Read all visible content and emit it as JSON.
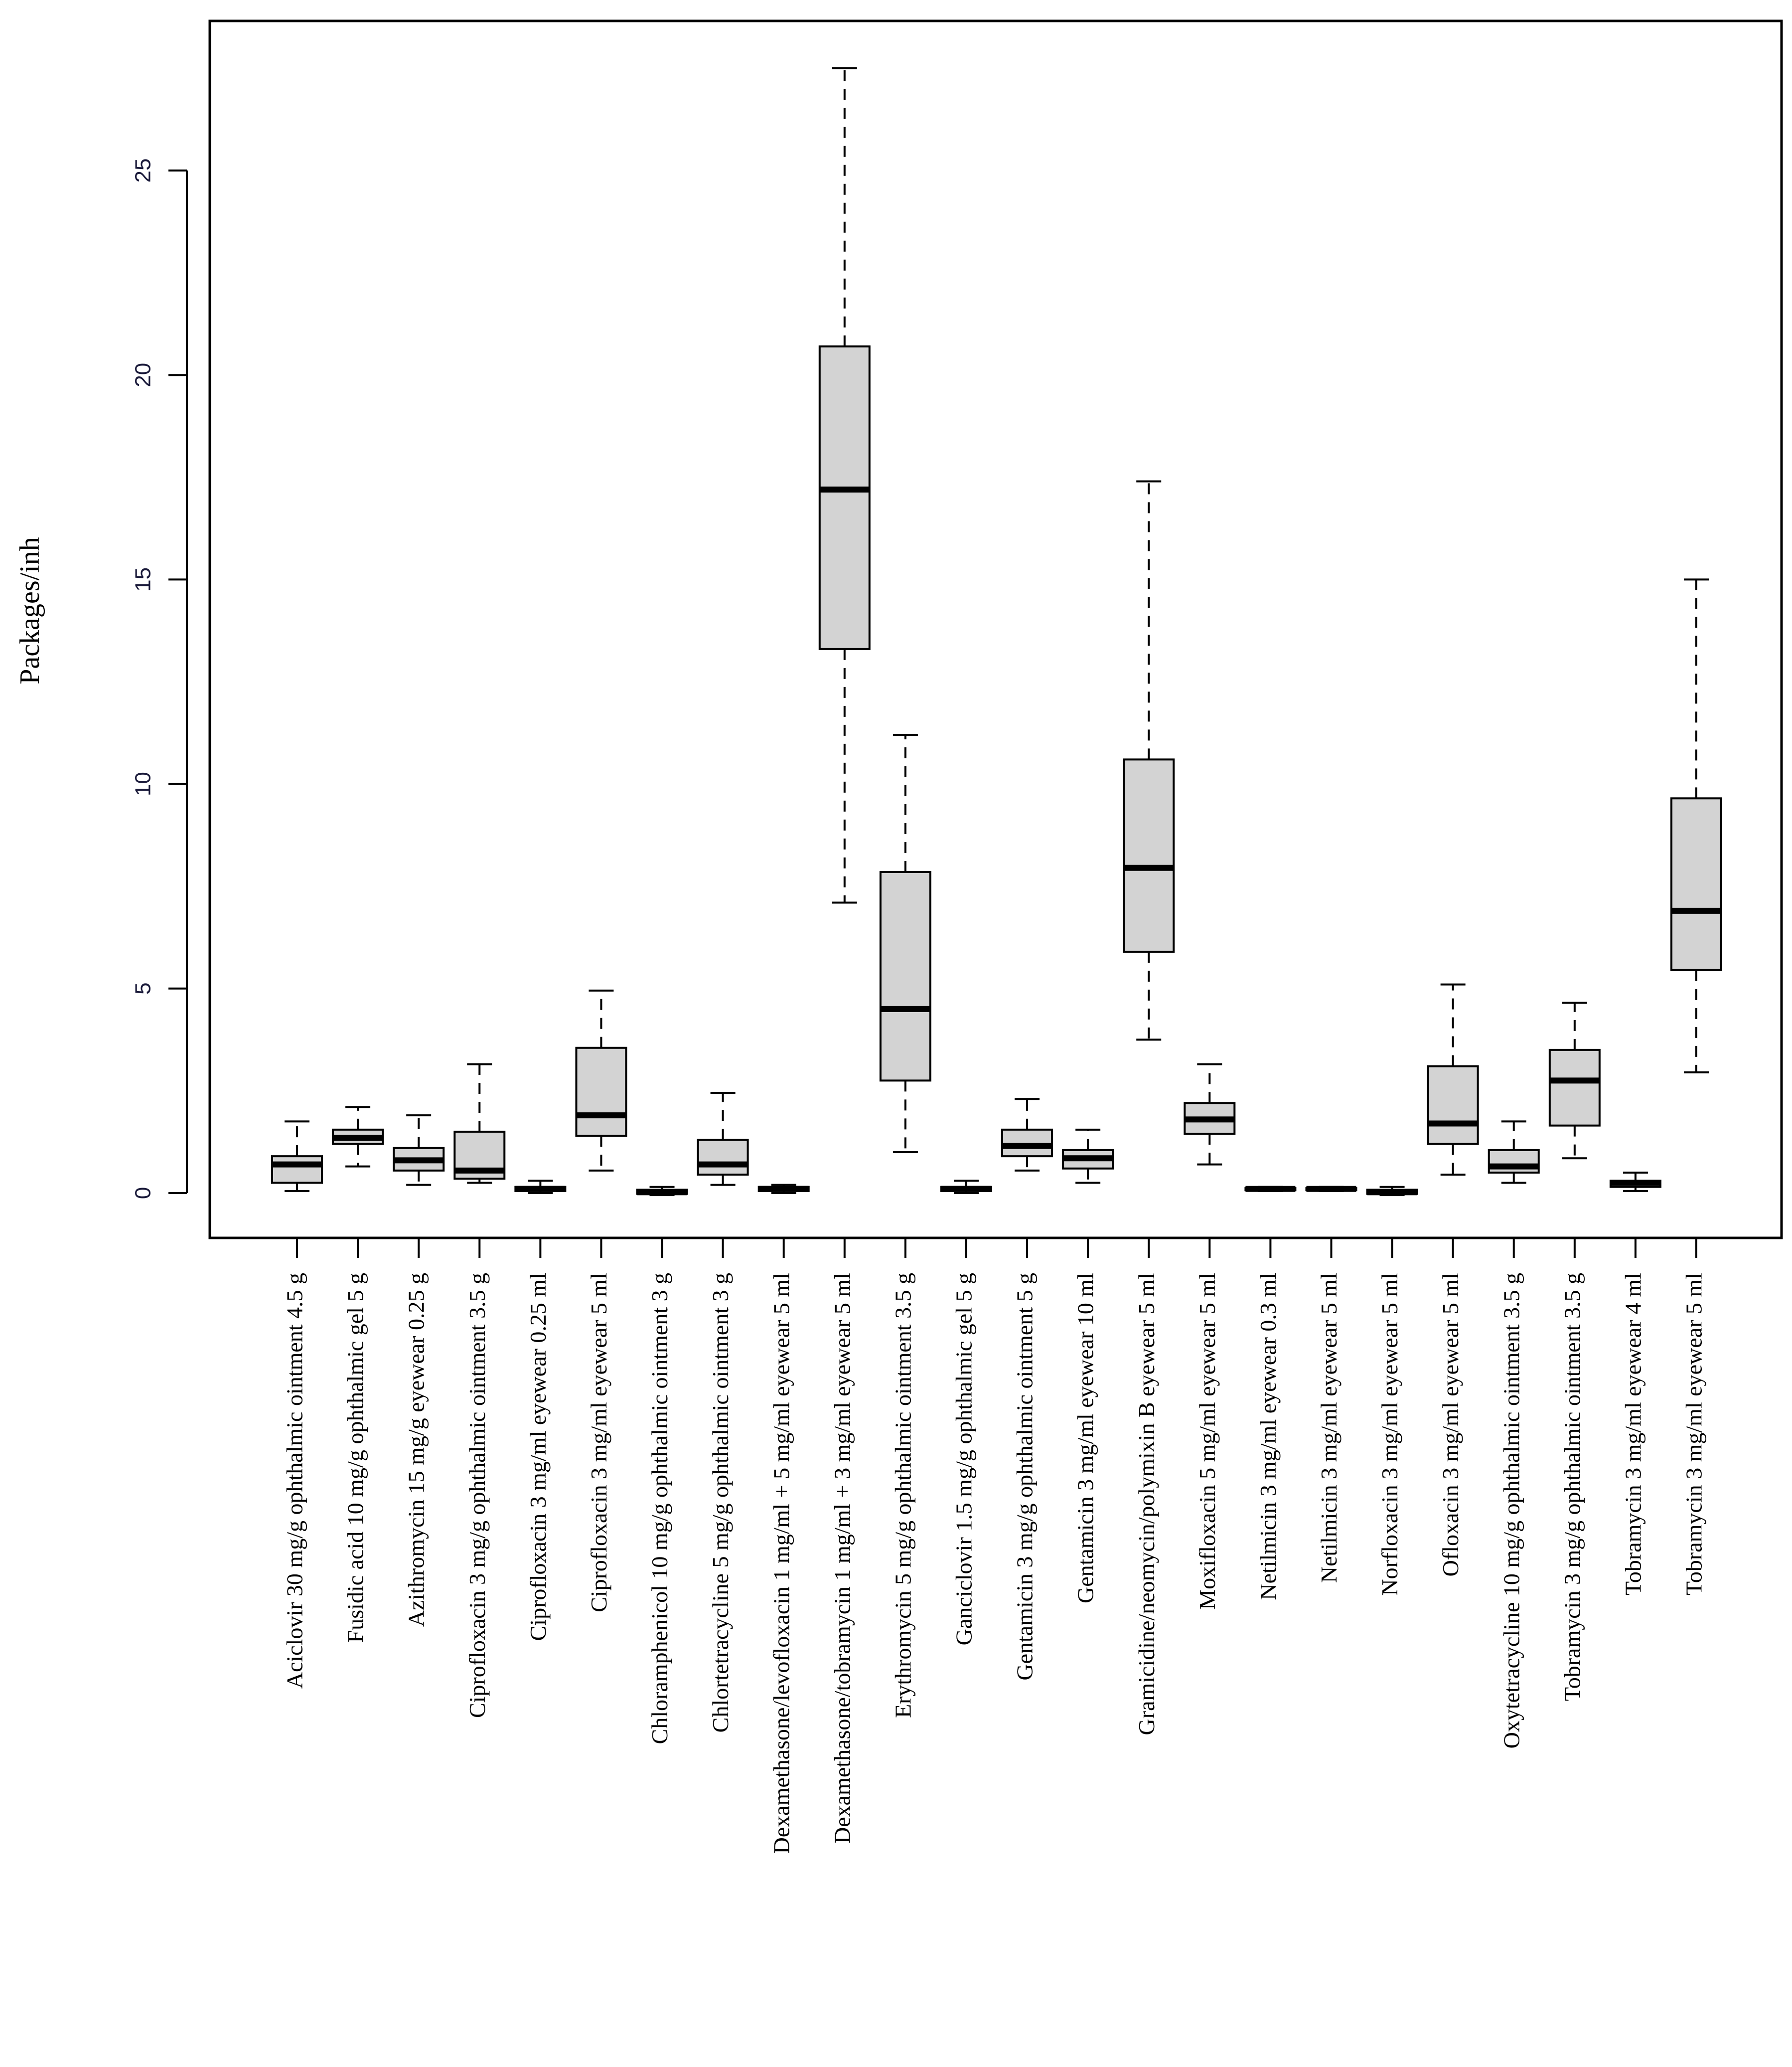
{
  "chart_data": {
    "type": "boxplot",
    "title": "",
    "xlabel": "",
    "ylabel": "Packages/inh",
    "ylim": [
      -0.9,
      28.7
    ],
    "yticks": [
      0,
      5,
      10,
      15,
      20,
      25
    ],
    "box_fill": "#d3d3d3",
    "line_color": "#000000",
    "categories": [
      "Aciclovir 30 mg/g ophthalmic ointment 4.5 g",
      "Fusidic acid 10 mg/g ophthalmic gel 5 g",
      "Azithromycin 15 mg/g eyewear 0.25 g",
      "Ciprofloxacin 3 mg/g ophthalmic ointment 3.5 g",
      "Ciprofloxacin 3 mg/ml eyewear 0.25 ml",
      "Ciprofloxacin 3 mg/ml eyewear 5 ml",
      "Chloramphenicol 10 mg/g ophthalmic ointment 3 g",
      "Chlortetracycline 5 mg/g ophthalmic ointment 3 g",
      "Dexamethasone/levofloxacin 1 mg/ml + 5 mg/ml eyewear 5 ml",
      "Dexamethasone/tobramycin 1 mg/ml + 3 mg/ml eyewear 5 ml",
      "Erythromycin 5 mg/g ophthalmic ointment 3.5 g",
      "Ganciclovir 1.5 mg/g ophthalmic gel 5 g",
      "Gentamicin 3 mg/g ophthalmic ointment 5 g",
      "Gentamicin 3 mg/ml eyewear 10 ml",
      "Gramicidine/neomycin/polymixin B eyewear 5 ml",
      "Moxifloxacin 5 mg/ml eyewear 5 ml",
      "Netilmicin 3 mg/ml eyewear 0.3 ml",
      "Netilmicin 3 mg/ml eyewear 5 ml",
      "Norfloxacin 3 mg/ml eyewear 5 ml",
      "Ofloxacin 3 mg/ml eyewear 5 ml",
      "Oxytetracycline 10 mg/g ophthalmic ointment 3.5 g",
      "Tobramycin 3 mg/g ophthalmic ointment 3.5 g",
      "Tobramycin 3 mg/ml eyewear 4 ml",
      "Tobramycin 3 mg/ml eyewear 5 ml"
    ],
    "series": [
      {
        "name": "Packages/inh",
        "values": [
          {
            "min": 0.05,
            "q1": 0.25,
            "median": 0.7,
            "q3": 0.9,
            "max": 1.75
          },
          {
            "min": 0.65,
            "q1": 1.2,
            "median": 1.35,
            "q3": 1.55,
            "max": 2.1
          },
          {
            "min": 0.2,
            "q1": 0.55,
            "median": 0.8,
            "q3": 1.1,
            "max": 1.9
          },
          {
            "min": 0.25,
            "q1": 0.35,
            "median": 0.55,
            "q3": 1.5,
            "max": 3.15
          },
          {
            "min": 0.0,
            "q1": 0.05,
            "median": 0.1,
            "q3": 0.15,
            "max": 0.3
          },
          {
            "min": 0.55,
            "q1": 1.4,
            "median": 1.9,
            "q3": 3.55,
            "max": 4.95
          },
          {
            "min": -0.05,
            "q1": -0.02,
            "median": 0.02,
            "q3": 0.08,
            "max": 0.15
          },
          {
            "min": 0.2,
            "q1": 0.45,
            "median": 0.7,
            "q3": 1.3,
            "max": 2.45
          },
          {
            "min": 0.0,
            "q1": 0.05,
            "median": 0.1,
            "q3": 0.15,
            "max": 0.2
          },
          {
            "min": 7.1,
            "q1": 13.3,
            "median": 17.2,
            "q3": 20.7,
            "max": 27.5
          },
          {
            "min": 1.0,
            "q1": 2.75,
            "median": 4.5,
            "q3": 7.85,
            "max": 11.2
          },
          {
            "min": 0.0,
            "q1": 0.05,
            "median": 0.1,
            "q3": 0.15,
            "max": 0.3
          },
          {
            "min": 0.55,
            "q1": 0.9,
            "median": 1.15,
            "q3": 1.55,
            "max": 2.3
          },
          {
            "min": 0.25,
            "q1": 0.6,
            "median": 0.85,
            "q3": 1.05,
            "max": 1.55
          },
          {
            "min": 3.75,
            "q1": 5.9,
            "median": 7.95,
            "q3": 10.6,
            "max": 17.4
          },
          {
            "min": 0.7,
            "q1": 1.45,
            "median": 1.8,
            "q3": 2.2,
            "max": 3.15
          },
          {
            "min": 0.05,
            "q1": 0.07,
            "median": 0.1,
            "q3": 0.12,
            "max": 0.15
          },
          {
            "min": 0.05,
            "q1": 0.07,
            "median": 0.1,
            "q3": 0.12,
            "max": 0.15
          },
          {
            "min": -0.05,
            "q1": -0.02,
            "median": 0.02,
            "q3": 0.08,
            "max": 0.15
          },
          {
            "min": 0.45,
            "q1": 1.2,
            "median": 1.7,
            "q3": 3.1,
            "max": 5.1
          },
          {
            "min": 0.25,
            "q1": 0.5,
            "median": 0.65,
            "q3": 1.05,
            "max": 1.75
          },
          {
            "min": 0.85,
            "q1": 1.65,
            "median": 2.75,
            "q3": 3.5,
            "max": 4.65
          },
          {
            "min": 0.05,
            "q1": 0.15,
            "median": 0.25,
            "q3": 0.3,
            "max": 0.5
          },
          {
            "min": 2.95,
            "q1": 5.45,
            "median": 6.9,
            "q3": 9.65,
            "max": 15.0
          }
        ]
      }
    ]
  }
}
